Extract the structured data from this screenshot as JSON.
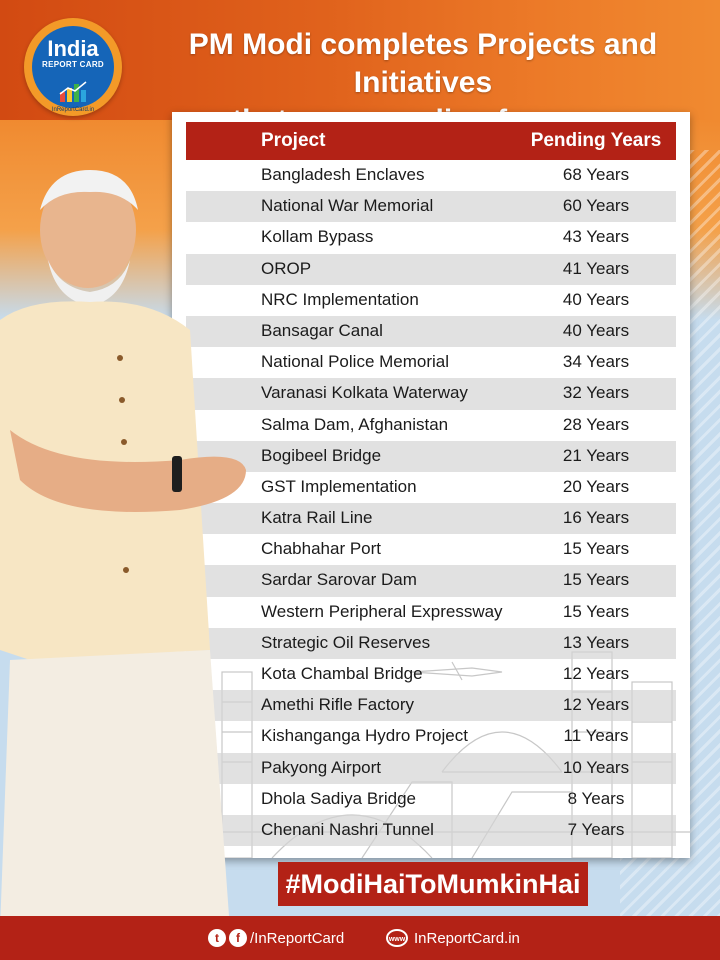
{
  "logo": {
    "word": "India",
    "sub": "REPORT CARD",
    "url": "InReportCard.in"
  },
  "headline": {
    "line1": "PM Modi completes Projects and Initiatives",
    "line2": "that were pending for ages"
  },
  "table": {
    "headers": [
      "Project",
      "Pending Years"
    ],
    "rows": [
      {
        "project": "Bangladesh Enclaves",
        "years": "68 Years"
      },
      {
        "project": "National War Memorial",
        "years": "60 Years"
      },
      {
        "project": "Kollam Bypass",
        "years": "43 Years"
      },
      {
        "project": "OROP",
        "years": "41 Years"
      },
      {
        "project": "NRC Implementation",
        "years": "40 Years"
      },
      {
        "project": "Bansagar Canal",
        "years": "40 Years"
      },
      {
        "project": "National Police Memorial",
        "years": "34 Years"
      },
      {
        "project": "Varanasi Kolkata Waterway",
        "years": "32 Years"
      },
      {
        "project": "Salma Dam, Afghanistan",
        "years": "28 Years"
      },
      {
        "project": "Bogibeel Bridge",
        "years": "21 Years"
      },
      {
        "project": "GST Implementation",
        "years": "20 Years"
      },
      {
        "project": "Katra Rail Line",
        "years": "16 Years"
      },
      {
        "project": "Chabhahar Port",
        "years": "15 Years"
      },
      {
        "project": "Sardar Sarovar Dam",
        "years": "15 Years"
      },
      {
        "project": "Western Peripheral Expressway",
        "years": "15 Years"
      },
      {
        "project": "Strategic Oil Reserves",
        "years": "13 Years"
      },
      {
        "project": "Kota Chambal Bridge",
        "years": "12 Years"
      },
      {
        "project": "Amethi Rifle Factory",
        "years": "12 Years"
      },
      {
        "project": "Kishanganga Hydro Project",
        "years": "11 Years"
      },
      {
        "project": "Pakyong Airport",
        "years": "10 Years"
      },
      {
        "project": "Dhola Sadiya Bridge",
        "years": "8 Years"
      },
      {
        "project": "Chenani Nashri Tunnel",
        "years": "7 Years"
      }
    ]
  },
  "hashtag": "#ModiHaiToMumkinHai",
  "footer": {
    "social_icons": [
      "twitter-icon",
      "facebook-icon"
    ],
    "social_handle": "/InReportCard",
    "website_icon": "www-globe-icon",
    "website": "InReportCard.in"
  },
  "colors": {
    "header_red": "#b32216",
    "orange": "#e0621c",
    "logo_blue": "#1565b8",
    "row_alt": "#d4d4d4"
  }
}
